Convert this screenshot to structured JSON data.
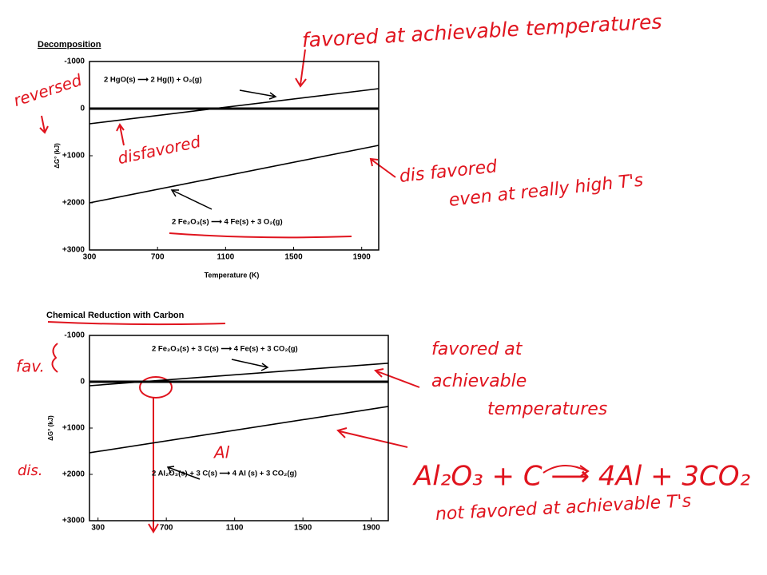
{
  "chart_data": [
    {
      "type": "line",
      "title": "Decomposition",
      "x_label": "Temperature (K)",
      "y_label": "ΔG° (kJ)",
      "x": [
        300,
        2000
      ],
      "series": [
        {
          "name": "2 HgO(s) ⟶ 2 Hg(l) + O₂(g)",
          "color": "#000000",
          "values": [
            322,
            -424
          ]
        },
        {
          "name": "2 Fe₂O₃(s) ⟶ 4 Fe(s) + 3 O₂(g)",
          "color": "#000000",
          "values": [
            2000,
            780
          ]
        }
      ],
      "xlim": [
        300,
        2000
      ],
      "xticks": [
        300,
        700,
        1100,
        1500,
        1900
      ],
      "ylim": [
        -1000,
        3000
      ],
      "y_inverted": true,
      "yticks": [
        -1000,
        0,
        {
          "value": 1000,
          "label": "+1000"
        },
        {
          "value": 2000,
          "label": "+2000"
        },
        {
          "value": 3000,
          "label": "+3000"
        }
      ],
      "zero_line": true
    },
    {
      "type": "line",
      "title": "Chemical Reduction with Carbon",
      "y_label": "ΔG° (kJ)",
      "x": [
        250,
        2000
      ],
      "series": [
        {
          "name": "2 Fe₂O₃(s) + 3 C(s) ⟶ 4 Fe(s) + 3 CO₂(g)",
          "color": "#000000",
          "values": [
            86,
            -400
          ]
        },
        {
          "name": "2 Al₂O₃(s) + 3 C(s) ⟶ 4 Al (s) + 3 CO₂(g)",
          "color": "#000000",
          "values": [
            1534,
            534
          ]
        }
      ],
      "xlim": [
        250,
        2000
      ],
      "xticks": [
        300,
        700,
        1100,
        1500,
        1900
      ],
      "ylim": [
        -1000,
        3000
      ],
      "y_inverted": true,
      "yticks": [
        -1000,
        0,
        {
          "value": 1000,
          "label": "+1000"
        },
        {
          "value": 2000,
          "label": "+2000"
        },
        {
          "value": 3000,
          "label": "+3000"
        }
      ],
      "zero_line": true
    }
  ],
  "annotations": [
    "favored at achievable temperatures",
    "reversed",
    "disfavored",
    "dis favored",
    "even at really high T's",
    "fav.",
    "dis.",
    "Al",
    "favored at",
    "achievable",
    "temperatures",
    "Al₂O₃ + C ⟶ 4Al + 3CO₂",
    "not favored at achievable T's"
  ]
}
